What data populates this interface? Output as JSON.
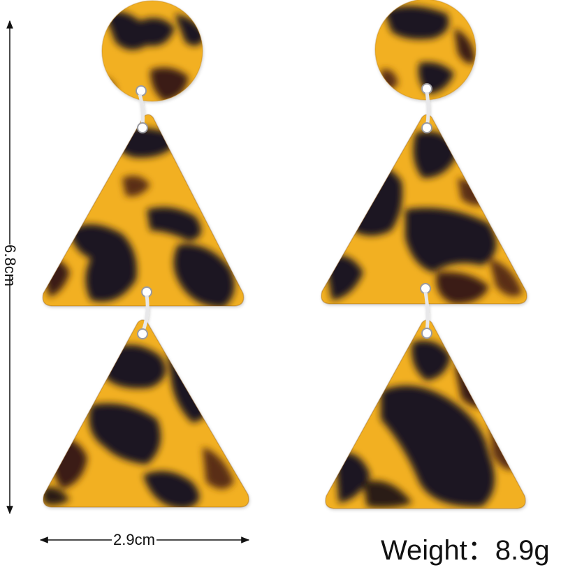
{
  "dimensions": {
    "height_label": "6.8cm",
    "width_label": "2.9cm"
  },
  "weight_label": "Weight：8.9g",
  "colors": {
    "amber": "#f2b021",
    "amber_deep": "#d9891a",
    "tortoise_dark": "#1f1820",
    "tortoise_brown": "#5a2f14",
    "ring_metal": "#e8e8ea",
    "dimension_line": "#111111"
  }
}
